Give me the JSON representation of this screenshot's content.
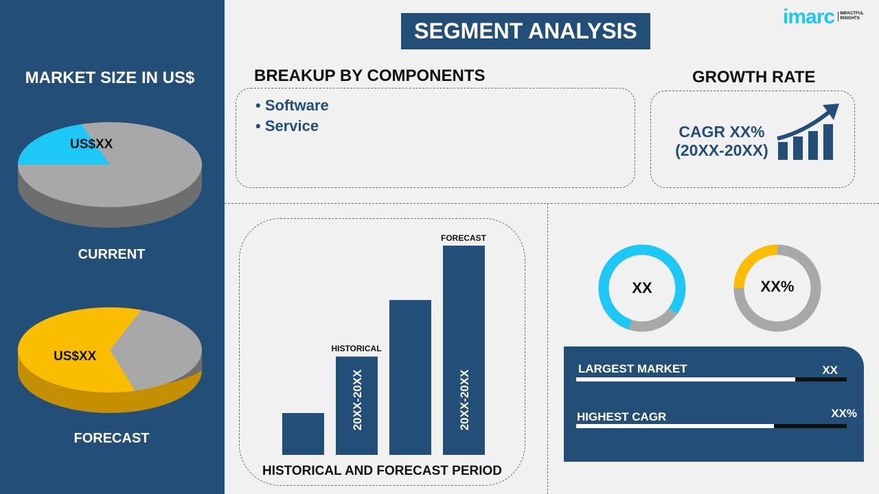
{
  "header": {
    "title": "SEGMENT ANALYSIS",
    "logo": {
      "brand": "imarc",
      "tagline": "IMPACTFUL INSIGHTS"
    }
  },
  "left": {
    "title": "MARKET SIZE IN US$",
    "current": {
      "label": "CURRENT",
      "value": "US$XX",
      "share": 0.2
    },
    "forecast": {
      "label": "FORECAST",
      "value": "US$XX",
      "share": 0.6
    }
  },
  "components": {
    "title": "BREAKUP BY COMPONENTS",
    "items": [
      "Software",
      "Service"
    ]
  },
  "growth": {
    "title": "GROWTH RATE",
    "cagr": "CAGR XX%",
    "period": "(20XX-20XX)"
  },
  "period_chart": {
    "title": "HISTORICAL AND FORECAST PERIOD",
    "historical_label": "HISTORICAL",
    "forecast_label": "FORECAST",
    "historical_range": "20XX-20XX",
    "forecast_range": "20XX-20XX",
    "relative_heights": [
      0.2,
      0.47,
      0.74,
      1.0
    ]
  },
  "donuts": [
    {
      "value": "XX",
      "fill": 0.8,
      "color": "#1ec8f6"
    },
    {
      "value": "XX%",
      "fill": 0.25,
      "color": "#fbbd00"
    }
  ],
  "stats": [
    {
      "label": "LARGEST MARKET",
      "value": "XX",
      "fill": 0.81
    },
    {
      "label": "HIGHEST CAGR",
      "value": "XX%",
      "fill": 0.73
    }
  ],
  "colors": {
    "navy": "#234e77",
    "cyan": "#1ec8f6",
    "yellow": "#fbbd00",
    "gray": "#a8a8a8"
  }
}
